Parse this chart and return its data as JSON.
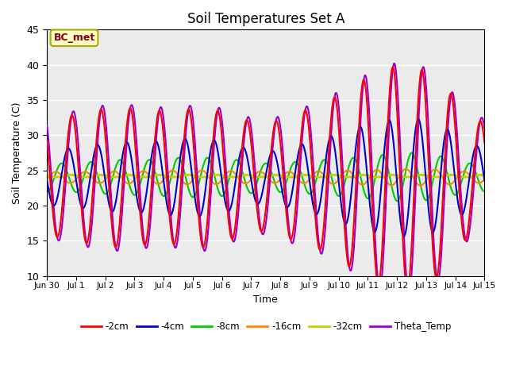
{
  "title": "Soil Temperatures Set A",
  "xlabel": "Time",
  "ylabel": "Soil Temperature (C)",
  "ylim": [
    10,
    45
  ],
  "annotation_text": "BC_met",
  "annotation_color": "#8B0000",
  "annotation_bg": "#FFFFCC",
  "annotation_edge": "#AAAA00",
  "legend_entries": [
    "-2cm",
    "-4cm",
    "-8cm",
    "-16cm",
    "-32cm",
    "Theta_Temp"
  ],
  "line_colors": [
    "#FF0000",
    "#0000CC",
    "#00CC00",
    "#FF8800",
    "#CCCC00",
    "#9900CC"
  ],
  "line_widths": [
    1.5,
    1.5,
    1.5,
    1.5,
    2.0,
    1.5
  ],
  "background_color": "#EBEBEB",
  "fig_background": "#FFFFFF",
  "x_tick_labels": [
    "Jun 30",
    "Jul 1",
    "Jul 2",
    "Jul 3",
    "Jul 4",
    "Jul 5",
    "Jul 6",
    "Jul 7",
    "Jul 8",
    "Jul 9",
    "Jul 10",
    "Jul 11",
    "Jul 12",
    "Jul 13",
    "Jul 14",
    "Jul 15"
  ],
  "x_tick_positions": [
    0,
    1,
    2,
    3,
    4,
    5,
    6,
    7,
    8,
    9,
    10,
    11,
    12,
    13,
    14,
    15
  ],
  "mean_2cm": 24.0,
  "mean_4cm": 24.0,
  "mean_8cm": 24.0,
  "mean_16cm": 24.0,
  "mean_32cm": 24.2,
  "mean_theta": 24.0,
  "amp_2cm": [
    8.5,
    9.5,
    10.0,
    9.5,
    9.5,
    10.0,
    8.5,
    7.5,
    9.0,
    10.5,
    13.0,
    15.5,
    16.0,
    14.0,
    8.0
  ],
  "amp_4cm": [
    4.0,
    4.5,
    5.0,
    5.0,
    5.5,
    5.5,
    4.5,
    3.5,
    4.5,
    5.5,
    7.0,
    8.0,
    8.5,
    7.5,
    4.5
  ],
  "amp_8cm": [
    2.0,
    2.2,
    2.5,
    2.5,
    2.8,
    2.8,
    2.5,
    2.0,
    2.2,
    2.5,
    2.8,
    3.2,
    3.5,
    3.0,
    2.0
  ],
  "amp_16cm": [
    0.8,
    0.8,
    0.9,
    0.9,
    1.0,
    1.0,
    0.9,
    0.8,
    0.8,
    0.9,
    1.0,
    1.1,
    1.2,
    1.1,
    0.8
  ],
  "amp_32cm": [
    0.15,
    0.15,
    0.15,
    0.15,
    0.15,
    0.15,
    0.15,
    0.15,
    0.15,
    0.15,
    0.15,
    0.15,
    0.15,
    0.15,
    0.15
  ],
  "amp_theta": [
    9.0,
    10.0,
    10.5,
    10.0,
    10.0,
    10.5,
    9.0,
    8.0,
    9.5,
    11.0,
    13.5,
    16.0,
    16.5,
    14.5,
    8.5
  ],
  "phase_2cm": 0.0,
  "phase_4cm": 0.12,
  "phase_8cm": 0.35,
  "phase_16cm": 0.55,
  "phase_32cm": 0.0,
  "phase_theta": -0.05,
  "peak_hour": 14.5
}
